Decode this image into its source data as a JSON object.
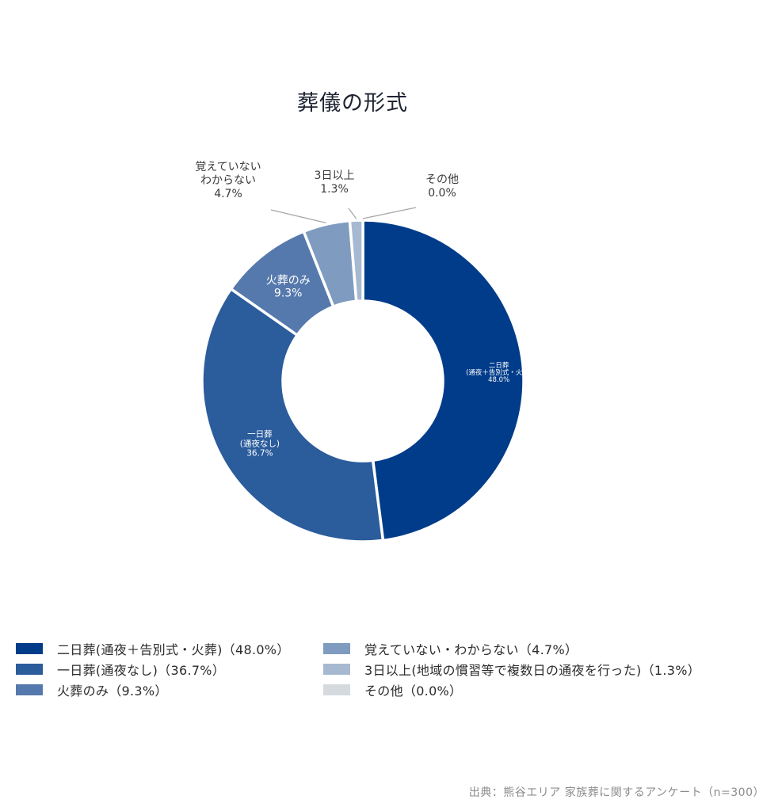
{
  "chart_data": {
    "type": "pie",
    "title": "葬儀の形式",
    "categories": [
      "二日葬(通夜＋告別式・火葬)",
      "一日葬(通夜なし)",
      "火葬のみ",
      "覚えていない・わからない",
      "3日以上(地域の慣習等で複数日の通夜を行った)",
      "その他"
    ],
    "values": [
      48.0,
      36.7,
      9.3,
      4.7,
      1.3,
      0.0
    ],
    "colors": [
      "#003c8a",
      "#2b5c9c",
      "#5679ad",
      "#7f9cc0",
      "#a7b9d1",
      "#d5dade"
    ],
    "slice_labels": [
      {
        "lines": [
          "二日葬",
          "(通夜＋告別式・火葬)",
          "48.0%"
        ],
        "position": "inside"
      },
      {
        "lines": [
          "一日葬",
          "(通夜なし)",
          "36.7%"
        ],
        "position": "inside"
      },
      {
        "lines": [
          "火葬のみ",
          "9.3%"
        ],
        "position": "inside"
      },
      {
        "lines": [
          "覚えていない",
          "わからない",
          "4.7%"
        ],
        "position": "outside"
      },
      {
        "lines": [
          "3日以上",
          "1.3%"
        ],
        "position": "outside"
      },
      {
        "lines": [
          "その他",
          "0.0%"
        ],
        "position": "outside"
      }
    ],
    "legend": [
      "二日葬(通夜＋告別式・火葬)（48.0%）",
      "一日葬(通夜なし)（36.7%）",
      "火葬のみ（9.3%）",
      "覚えていない・わからない（4.7%）",
      "3日以上(地域の慣習等で複数日の通夜を行った)（1.3%）",
      "その他（0.0%）"
    ],
    "legend_placement": "bottom",
    "donut": true
  },
  "source": "出典：熊谷エリア 家族葬に関するアンケート（n=300）"
}
